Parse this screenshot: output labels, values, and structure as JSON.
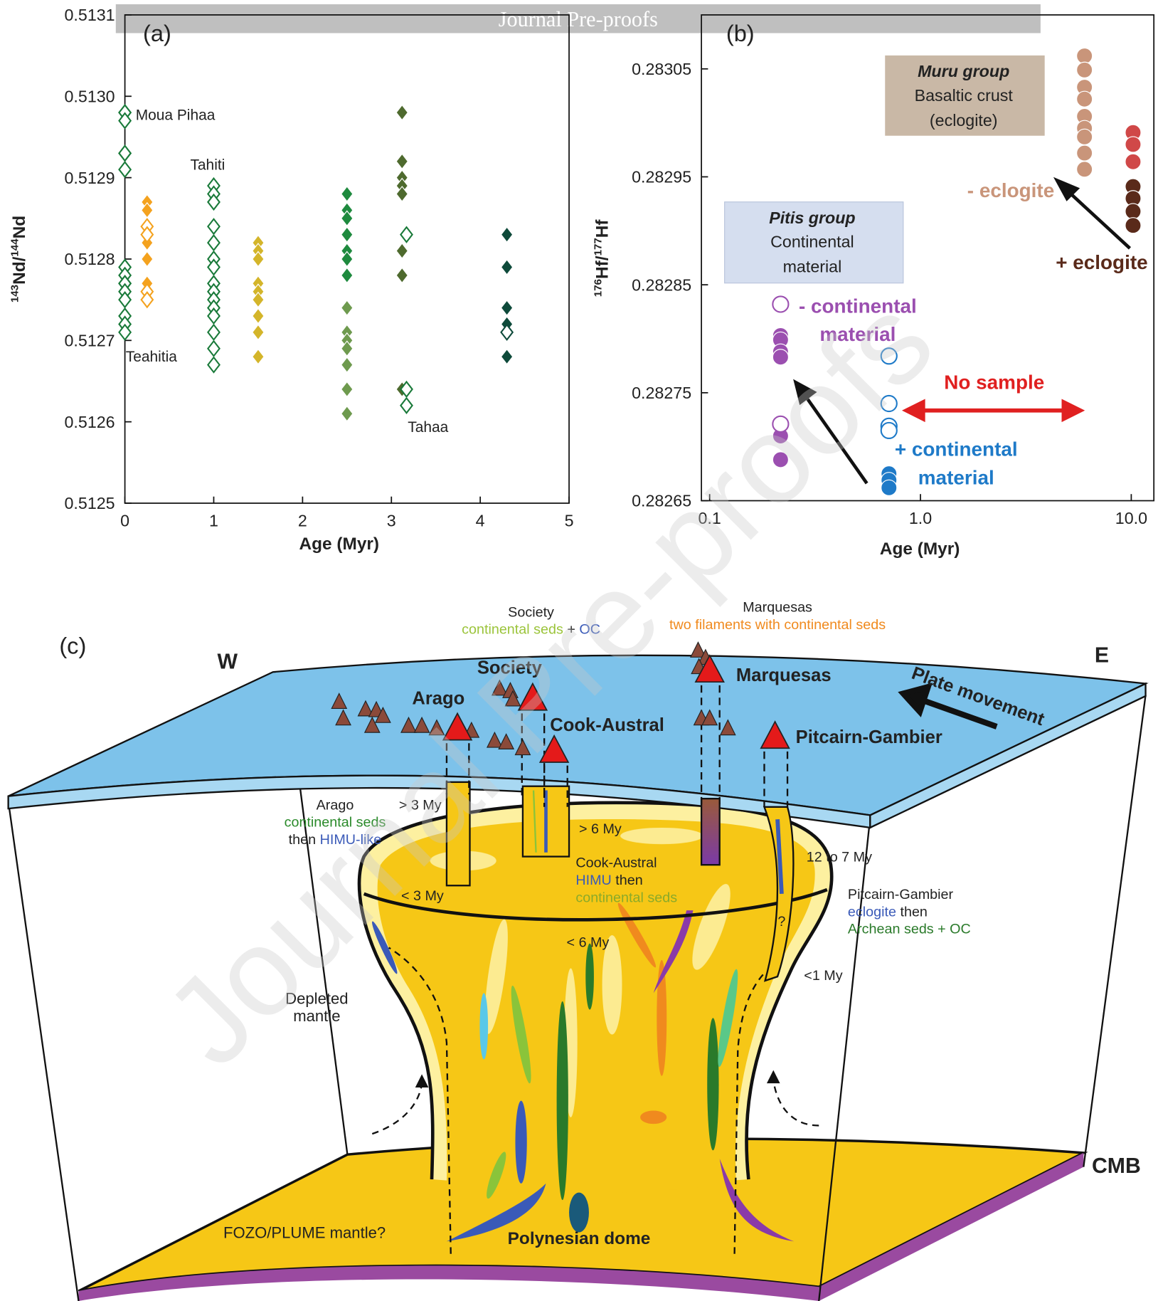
{
  "header": "Journal Pre-proofs",
  "watermark": "Journal Pre-proofs",
  "chart_data": [
    {
      "type": "scatter",
      "panel_label": "(a)",
      "xlabel": "Age (Myr)",
      "ylabel_parts": [
        "143",
        "Nd/",
        "144",
        "Nd"
      ],
      "marker": "diamond",
      "xlim": [
        0,
        5
      ],
      "ylim": [
        0.5125,
        0.5131
      ],
      "xticks": [
        0,
        1,
        2,
        3,
        4,
        5
      ],
      "yticks": [
        0.5125,
        0.5126,
        0.5127,
        0.5128,
        0.5129,
        {
          "value": 0.513,
          "label": "0.5130"
        },
        0.5131
      ],
      "annotations": [
        {
          "text": "Moua Pihaa"
        },
        {
          "text": "Tahiti"
        },
        {
          "text": "Teahitia"
        },
        {
          "text": "Tahaa"
        }
      ],
      "series": [
        {
          "color": "#1a7a3a",
          "filled": false,
          "x": [
            0,
            0,
            0,
            0,
            0,
            0,
            0,
            0,
            0,
            0,
            0,
            0,
            0,
            0,
            0
          ],
          "values": [
            0.51298,
            0.51298,
            0.51297,
            0.51293,
            0.51293,
            0.51291,
            0.51279,
            0.51278,
            0.51277,
            0.51277,
            0.51276,
            0.51275,
            0.51273,
            0.51272,
            0.51271
          ]
        },
        {
          "color": "#f4a21e",
          "filled": true,
          "x": [
            0.25,
            0.25,
            0.25,
            0.25,
            0.25,
            0.25,
            0.25
          ],
          "values": [
            0.51287,
            0.51286,
            0.51284,
            0.51282,
            0.5128,
            0.51277,
            0.51276
          ]
        },
        {
          "color": "#f4a21e",
          "filled": false,
          "x": [
            0.25,
            0.25,
            0.25,
            0.25
          ],
          "values": [
            0.51284,
            0.51283,
            0.51276,
            0.51275
          ]
        },
        {
          "color": "#1a7a3a",
          "filled": false,
          "x": [
            1,
            1,
            1,
            1,
            1,
            1,
            1,
            1,
            1,
            1,
            1,
            1,
            1,
            1,
            1
          ],
          "values": [
            0.51289,
            0.51288,
            0.51287,
            0.51284,
            0.51282,
            0.5128,
            0.51279,
            0.51277,
            0.51276,
            0.51275,
            0.51274,
            0.51273,
            0.51271,
            0.51269,
            0.51267
          ]
        },
        {
          "color": "#d4b52a",
          "filled": true,
          "x": [
            1.5,
            1.5,
            1.5,
            1.5,
            1.5,
            1.5,
            1.5,
            1.5,
            1.5
          ],
          "values": [
            0.51282,
            0.51281,
            0.5128,
            0.51277,
            0.51276,
            0.51275,
            0.51273,
            0.51271,
            0.51268
          ]
        },
        {
          "color": "#1e8a3e",
          "filled": true,
          "x": [
            2.5,
            2.5,
            2.5,
            2.5,
            2.5,
            2.5,
            2.5
          ],
          "values": [
            0.51288,
            0.51286,
            0.51285,
            0.51283,
            0.51281,
            0.5128,
            0.51278
          ]
        },
        {
          "color": "#6e9a4e",
          "filled": true,
          "x": [
            2.5,
            2.5,
            2.5,
            2.5,
            2.5,
            2.5,
            2.5
          ],
          "values": [
            0.51274,
            0.51271,
            0.5127,
            0.51269,
            0.51267,
            0.51264,
            0.51261
          ]
        },
        {
          "color": "#4e6a2e",
          "filled": true,
          "x": [
            3.12,
            3.12,
            3.12,
            3.12,
            3.12,
            3.12,
            3.12,
            3.12
          ],
          "values": [
            0.51298,
            0.51292,
            0.5129,
            0.51289,
            0.51288,
            0.51281,
            0.51278,
            0.51264
          ]
        },
        {
          "color": "#1a7a3a",
          "filled": false,
          "x": [
            3.17,
            3.17,
            3.17
          ],
          "values": [
            0.51283,
            0.51264,
            0.51262
          ]
        },
        {
          "color": "#0e4a3a",
          "filled": true,
          "x": [
            4.3,
            4.3,
            4.3,
            4.3,
            4.3,
            4.3
          ],
          "values": [
            0.51283,
            0.51279,
            0.51274,
            0.51272,
            0.51271,
            0.51268
          ]
        },
        {
          "color": "#0e4a3a",
          "filled": false,
          "x": [
            4.3
          ],
          "values": [
            0.51271
          ]
        }
      ]
    },
    {
      "type": "scatter",
      "panel_label": "(b)",
      "xlabel": "Age (Myr)",
      "ylabel_parts": [
        "176",
        "Hf/",
        "177",
        "Hf"
      ],
      "marker": "circle",
      "xscale": "log",
      "xlim": [
        0.0914,
        12.8
      ],
      "ylim": [
        0.28265,
        0.2831
      ],
      "xticks": [
        0.1,
        {
          "value": 1,
          "label": "1.0"
        },
        {
          "value": 10,
          "label": "10.0"
        }
      ],
      "yticks": [
        0.28265,
        0.28275,
        0.28285,
        0.28295,
        0.28305
      ],
      "annotations": [
        {
          "text": "Muru group",
          "color": "#222222"
        },
        {
          "text": "Basaltic crust",
          "color": "#222222"
        },
        {
          "text": "(eclogite)",
          "color": "#222222"
        },
        {
          "text": "Pitis group",
          "color": "#222222"
        },
        {
          "text": "Continental",
          "color": "#222222"
        },
        {
          "text": "material",
          "color": "#222222"
        },
        {
          "text": "- eclogite",
          "color": "#c9957a"
        },
        {
          "text": "+ eclogite",
          "color": "#5a2a1a"
        },
        {
          "text": "- continental",
          "color": "#9b4fb0"
        },
        {
          "text": "material",
          "color": "#9b4fb0"
        },
        {
          "text": "No sample",
          "color": "#e02020"
        },
        {
          "text": "+ continental",
          "color": "#1e7ac8"
        },
        {
          "text": "material",
          "color": "#1e7ac8"
        }
      ],
      "series": [
        {
          "color": "#c9957a",
          "filled": true,
          "x": [
            6,
            6,
            6,
            6,
            6,
            6,
            6,
            6,
            6
          ],
          "values": [
            0.283062,
            0.283049,
            0.283033,
            0.283022,
            0.283006,
            0.282995,
            0.282987,
            0.282972,
            0.282957
          ]
        },
        {
          "color": "#d04848",
          "filled": true,
          "x": [
            10.2,
            10.2,
            10.2
          ],
          "values": [
            0.282991,
            0.28298,
            0.282964
          ]
        },
        {
          "color": "#5a2a1a",
          "filled": true,
          "x": [
            10.2,
            10.2,
            10.2,
            10.2
          ],
          "values": [
            0.282941,
            0.28293,
            0.282918,
            0.282905
          ]
        },
        {
          "color": "#9b4fb0",
          "filled": true,
          "x": [
            0.217,
            0.217,
            0.217,
            0.217,
            0.217,
            0.217
          ],
          "values": [
            0.282803,
            0.282799,
            0.282788,
            0.282783,
            0.28271,
            0.282688
          ]
        },
        {
          "color": "#9b4fb0",
          "filled": false,
          "x": [
            0.217,
            0.217
          ],
          "values": [
            0.282832,
            0.282721
          ]
        },
        {
          "color": "#1e7ac8",
          "filled": false,
          "x": [
            0.709,
            0.709,
            0.709,
            0.709
          ],
          "values": [
            0.282784,
            0.28274,
            0.282719,
            0.282715
          ]
        },
        {
          "color": "#1e7ac8",
          "filled": true,
          "x": [
            0.709,
            0.709,
            0.709
          ],
          "values": [
            0.282675,
            0.282669,
            0.282662
          ]
        }
      ]
    }
  ],
  "diagram": {
    "labels": [
      [
        [
          {
            "text": "Society"
          }
        ],
        [
          {
            "text": "continental seds",
            "color": "#9bc43a"
          },
          {
            "text": " + "
          },
          {
            "text": "OC",
            "color": "#3a5ab8"
          }
        ]
      ],
      [
        [
          {
            "text": "Marquesas"
          }
        ],
        [
          {
            "text": "two filaments with continental seds",
            "color": "#f08a1e"
          }
        ]
      ],
      [
        [
          {
            "text": "(c)"
          }
        ]
      ],
      [
        [
          {
            "text": "W"
          }
        ]
      ],
      [
        [
          {
            "text": "E"
          }
        ]
      ],
      [
        [
          {
            "text": "Society"
          }
        ]
      ],
      [
        [
          {
            "text": "Marquesas"
          }
        ]
      ],
      [
        [
          {
            "text": "Arago"
          }
        ]
      ],
      [
        [
          {
            "text": "Cook-Austral"
          }
        ]
      ],
      [
        [
          {
            "text": "Pitcairn-Gambier"
          }
        ]
      ],
      [
        [
          {
            "text": "Plate movement"
          }
        ]
      ],
      [
        [
          {
            "text": "Arago"
          }
        ],
        [
          {
            "text": "continental seds",
            "color": "#2a8a2a"
          }
        ],
        [
          {
            "text": "then "
          },
          {
            "text": "HIMU-like",
            "color": "#3a5ab8"
          }
        ]
      ],
      [
        [
          {
            "text": "> 3 My"
          }
        ]
      ],
      [
        [
          {
            "text": "> 6 My"
          }
        ]
      ],
      [
        [
          {
            "text": "< 3 My"
          }
        ]
      ],
      [
        [
          {
            "text": "Cook-Austral"
          }
        ],
        [
          {
            "text": "HIMU",
            "color": "#3a5ab8"
          },
          {
            "text": " then"
          }
        ],
        [
          {
            "text": "continental seds",
            "color": "#8aaa2a"
          }
        ]
      ],
      [
        [
          {
            "text": "12 to 7 My"
          }
        ]
      ],
      [
        [
          {
            "text": "Pitcairn-Gambier"
          }
        ],
        [
          {
            "text": "eclogite",
            "color": "#3a5ab8"
          },
          {
            "text": " then"
          }
        ],
        [
          {
            "text": "Archean seds + OC",
            "color": "#2a7a2a"
          }
        ]
      ],
      [
        [
          {
            "text": "< 6 My"
          }
        ]
      ],
      [
        [
          {
            "text": "?"
          }
        ]
      ],
      [
        [
          {
            "text": "<1 My"
          }
        ]
      ],
      [
        [
          {
            "text": "Depleted"
          }
        ],
        [
          {
            "text": "mantle"
          }
        ]
      ],
      [
        [
          {
            "text": "CMB"
          }
        ]
      ],
      [
        [
          {
            "text": "FOZO/PLUME mantle?"
          }
        ]
      ],
      [
        [
          {
            "text": "Polynesian dome"
          }
        ]
      ]
    ]
  }
}
